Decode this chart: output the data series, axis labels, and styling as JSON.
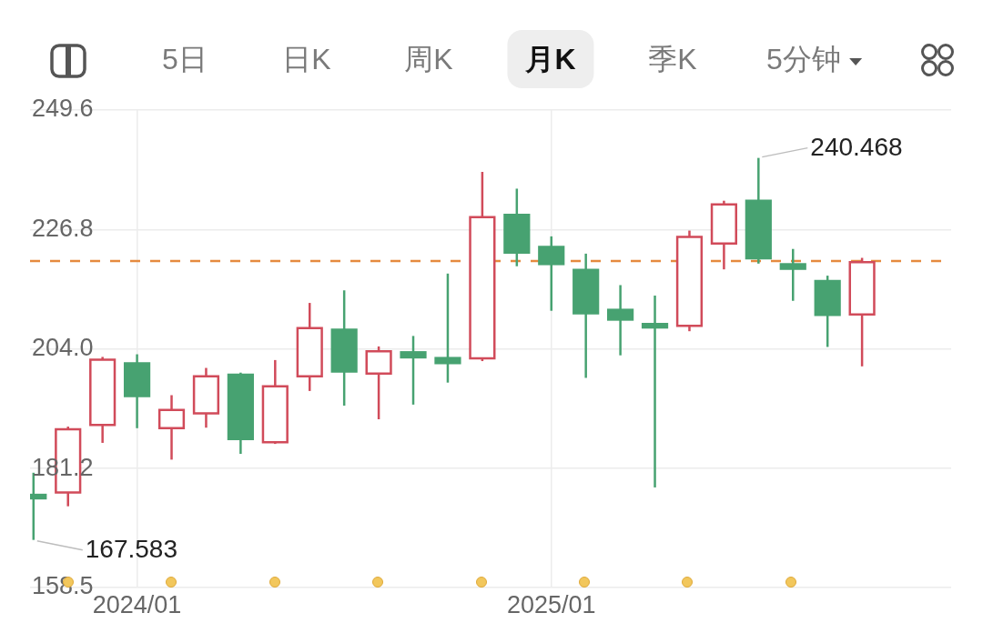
{
  "chart_data": {
    "type": "candlestick",
    "x": [
      "2023-10",
      "2023-11",
      "2023-12",
      "2024-01",
      "2024-02",
      "2024-03",
      "2024-04",
      "2024-05",
      "2024-06",
      "2024-07",
      "2024-08",
      "2024-09",
      "2024-10",
      "2024-11",
      "2024-12",
      "2025-01",
      "2025-02",
      "2025-03",
      "2025-04",
      "2025-05",
      "2025-06",
      "2025-07",
      "2025-08",
      "2025-09",
      "2025-10"
    ],
    "ohlc": [
      [
        176.4,
        180.4,
        167.583,
        175.3
      ],
      [
        176.4,
        189.2,
        174.0,
        188.9
      ],
      [
        189.3,
        202.5,
        186.1,
        202.2
      ],
      [
        201.5,
        203.0,
        188.9,
        194.8
      ],
      [
        188.7,
        195.2,
        182.9,
        192.6
      ],
      [
        191.5,
        200.4,
        189.0,
        199.0
      ],
      [
        199.3,
        199.5,
        184.0,
        186.6
      ],
      [
        186.0,
        201.9,
        185.9,
        197.1
      ],
      [
        198.6,
        212.8,
        196.0,
        208.2
      ],
      [
        207.9,
        215.2,
        193.2,
        199.5
      ],
      [
        199.1,
        204.5,
        190.6,
        203.8
      ],
      [
        203.6,
        206.5,
        193.4,
        202.2
      ],
      [
        202.5,
        218.4,
        197.6,
        201.1
      ],
      [
        202.0,
        237.8,
        201.7,
        229.4
      ],
      [
        229.8,
        234.6,
        219.8,
        222.2
      ],
      [
        223.7,
        225.5,
        211.3,
        220.0
      ],
      [
        219.3,
        222.2,
        198.5,
        210.6
      ],
      [
        211.7,
        216.2,
        202.8,
        209.4
      ],
      [
        209.0,
        214.2,
        177.6,
        207.9
      ],
      [
        208.2,
        226.6,
        207.4,
        225.6
      ],
      [
        223.9,
        232.3,
        219.2,
        231.8
      ],
      [
        232.5,
        240.468,
        220.3,
        221.1
      ],
      [
        220.4,
        223.1,
        213.2,
        219.1
      ],
      [
        217.2,
        218.0,
        204.4,
        210.3
      ],
      [
        210.4,
        221.4,
        200.7,
        220.8
      ]
    ],
    "colors": [
      "#47a271",
      "#d14b5a",
      "#d14b5a",
      "#47a271",
      "#d14b5a",
      "#d14b5a",
      "#47a271",
      "#d14b5a",
      "#d14b5a",
      "#47a271",
      "#d14b5a",
      "#47a271",
      "#47a271",
      "#d14b5a",
      "#47a271",
      "#47a271",
      "#47a271",
      "#47a271",
      "#47a271",
      "#d14b5a",
      "#d14b5a",
      "#47a271",
      "#47a271",
      "#47a271",
      "#d14b5a"
    ],
    "xlim": [
      "2023-09-28",
      "2025-12-19"
    ],
    "xticks": [
      {
        "value": "2024-01",
        "label": "2024/01"
      },
      {
        "value": "2025-01",
        "label": "2025/01"
      }
    ],
    "ylim": [
      158.5,
      249.6
    ],
    "yticks": [
      158.5,
      181.2,
      {
        "value": 204,
        "label": "204.0"
      },
      226.8,
      249.6
    ],
    "grid": true,
    "ref_lines": [
      {
        "axis": "y",
        "value": 220.8,
        "color": "#e58a3f",
        "line_style": "dashed"
      }
    ],
    "annotations": [
      "5日",
      "日K",
      "周K",
      "月K",
      "季K",
      "5分钟",
      {
        "text": "240.468",
        "x": "2025-07",
        "y": 240.468
      },
      {
        "text": "167.583",
        "x": "2023-10",
        "y": 167.583
      }
    ]
  }
}
